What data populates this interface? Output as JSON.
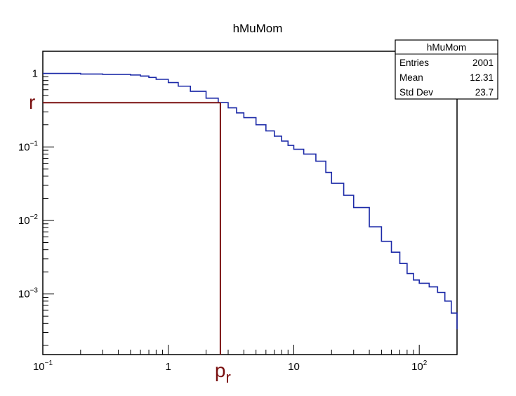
{
  "chart_data": {
    "type": "line",
    "title": "hMuMom",
    "xlabel": "",
    "ylabel": "",
    "x_scale": "log",
    "y_scale": "log",
    "xlim": [
      0.1,
      200
    ],
    "ylim": [
      0.00015,
      2
    ],
    "grid": false,
    "x_ticks": [
      {
        "value": 0.1,
        "base": "10",
        "exp": "−1"
      },
      {
        "value": 1,
        "base": "1",
        "exp": ""
      },
      {
        "value": 10,
        "base": "10",
        "exp": ""
      },
      {
        "value": 100,
        "base": "10",
        "exp": "2"
      }
    ],
    "y_ticks": [
      {
        "value": 1,
        "base": "1",
        "exp": ""
      },
      {
        "value": 0.1,
        "base": "10",
        "exp": "−1"
      },
      {
        "value": 0.01,
        "base": "10",
        "exp": "−2"
      },
      {
        "value": 0.001,
        "base": "10",
        "exp": "−3"
      }
    ],
    "series": [
      {
        "color": "#1c2aa8",
        "step": true,
        "x": [
          0.1,
          0.2,
          0.3,
          0.5,
          0.6,
          0.7,
          0.8,
          1.0,
          1.2,
          1.5,
          2.0,
          2.5,
          3.0,
          3.5,
          4.0,
          5.0,
          6.0,
          7.0,
          8.0,
          9.0,
          10,
          12,
          15,
          18,
          20,
          25,
          30,
          40,
          50,
          60,
          70,
          80,
          90,
          100,
          120,
          140,
          160,
          180,
          200
        ],
        "y": [
          1.0,
          0.98,
          0.97,
          0.95,
          0.92,
          0.88,
          0.83,
          0.75,
          0.67,
          0.57,
          0.46,
          0.4,
          0.34,
          0.29,
          0.25,
          0.2,
          0.165,
          0.14,
          0.12,
          0.105,
          0.093,
          0.08,
          0.064,
          0.045,
          0.032,
          0.022,
          0.015,
          0.0082,
          0.0052,
          0.0037,
          0.0026,
          0.0019,
          0.00155,
          0.0014,
          0.00125,
          0.00105,
          0.0008,
          0.00055,
          0.00033
        ]
      }
    ]
  },
  "stats": {
    "title": "hMuMom",
    "rows": [
      {
        "label": "Entries",
        "value": "2001"
      },
      {
        "label": "Mean",
        "value": "12.31"
      },
      {
        "label": "Std Dev",
        "value": "23.7"
      }
    ]
  },
  "annotation": {
    "color": "#7a1010",
    "x_value": 2.6,
    "y_value": 0.4,
    "y_label": "r",
    "x_label_base": "p",
    "x_label_sub": "r"
  }
}
